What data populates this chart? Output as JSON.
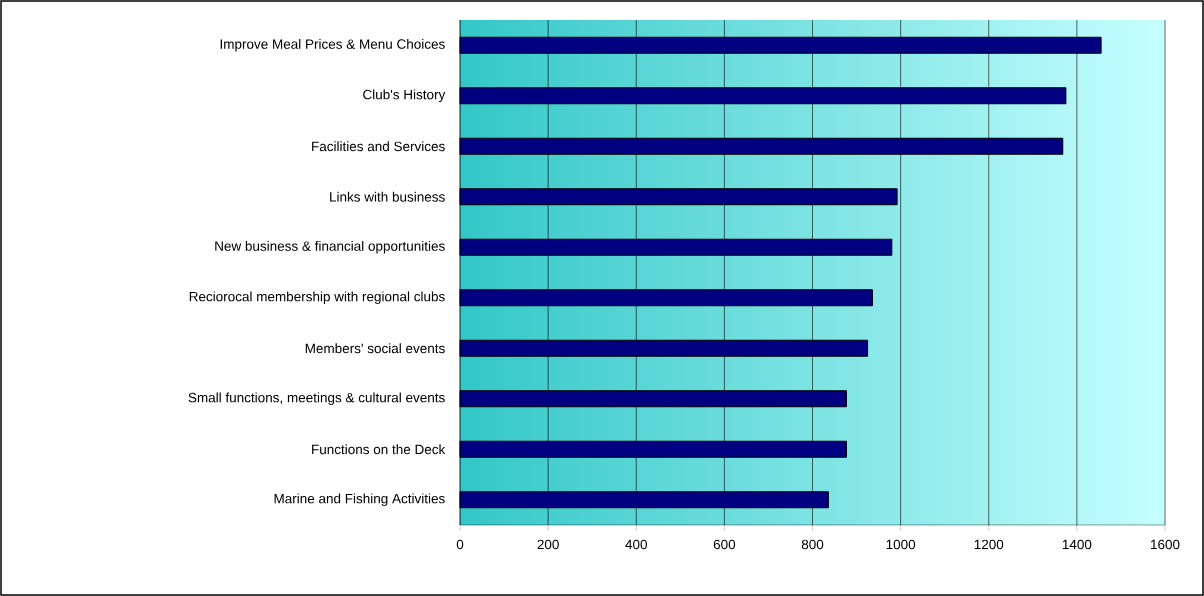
{
  "chart_data": {
    "type": "bar",
    "orientation": "horizontal",
    "categories": [
      "Improve Meal Prices & Menu Choices",
      "Club's History",
      "Facilities and Services",
      "Links with business",
      "New business & financial opportunities",
      "Reciorocal membership with regional clubs",
      "Members' social events",
      "Small functions, meetings & cultural events",
      "Functions on the Deck",
      "Marine and Fishing Activities"
    ],
    "values": [
      1455,
      1375,
      1368,
      992,
      980,
      936,
      925,
      877,
      877,
      836
    ],
    "color": "#000080",
    "xlim": [
      0,
      1600
    ],
    "xticks": [
      0,
      200,
      400,
      600,
      800,
      1000,
      1200,
      1400,
      1600
    ],
    "grid": "x"
  }
}
